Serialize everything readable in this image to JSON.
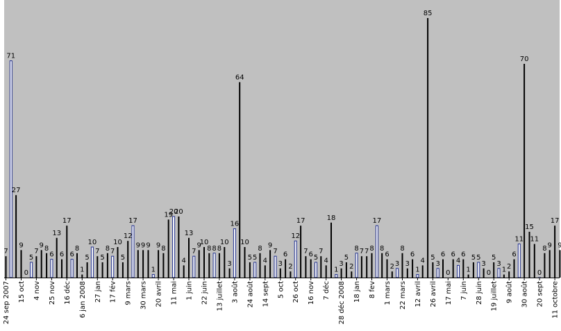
{
  "chart_data": {
    "type": "bar",
    "title": "",
    "xlabel": "",
    "ylabel": "",
    "ylim": [
      0,
      85
    ],
    "grid": false,
    "background": "#c0c0c0",
    "bar_color": "#000000",
    "highlight_color": "#1f2e8c",
    "values": [
      7,
      71,
      27,
      9,
      0,
      5,
      7,
      9,
      8,
      6,
      13,
      6,
      17,
      6,
      8,
      1,
      5,
      10,
      7,
      5,
      8,
      7,
      10,
      5,
      12,
      17,
      9,
      9,
      9,
      1,
      9,
      8,
      19,
      20,
      20,
      4,
      13,
      7,
      9,
      10,
      8,
      8,
      8,
      10,
      3,
      16,
      64,
      10,
      5,
      5,
      8,
      4,
      9,
      7,
      3,
      6,
      2,
      12,
      17,
      7,
      6,
      5,
      7,
      4,
      18,
      1,
      3,
      5,
      2,
      8,
      7,
      7,
      8,
      17,
      8,
      6,
      2,
      3,
      8,
      3,
      6,
      1,
      4,
      85,
      5,
      3,
      6,
      0,
      6,
      4,
      6,
      1,
      5,
      5,
      3,
      0,
      5,
      3,
      1,
      2,
      6,
      11,
      70,
      15,
      11,
      0,
      8,
      9,
      17,
      9
    ],
    "highlighted_indices": [
      1,
      5,
      9,
      13,
      17,
      21,
      25,
      29,
      33,
      37,
      41,
      45,
      49,
      53,
      57,
      61,
      65,
      69,
      73,
      77,
      81,
      85,
      89,
      93,
      97,
      101,
      105
    ],
    "tick_labels": [
      {
        "i": 0,
        "label": "24 sep 2007"
      },
      {
        "i": 3,
        "label": "15 oct"
      },
      {
        "i": 6,
        "label": "4 nov"
      },
      {
        "i": 9,
        "label": "25 nov"
      },
      {
        "i": 12,
        "label": "16 déc"
      },
      {
        "i": 15,
        "label": "6 jan 2008"
      },
      {
        "i": 18,
        "label": "27 jan"
      },
      {
        "i": 21,
        "label": "17 fév"
      },
      {
        "i": 24,
        "label": "9 mars"
      },
      {
        "i": 27,
        "label": "30 mars"
      },
      {
        "i": 30,
        "label": "20 avril"
      },
      {
        "i": 33,
        "label": "11 mai"
      },
      {
        "i": 36,
        "label": "1 juin"
      },
      {
        "i": 39,
        "label": "22 juin"
      },
      {
        "i": 42,
        "label": "13 juillet"
      },
      {
        "i": 45,
        "label": "3 août"
      },
      {
        "i": 48,
        "label": "24 août"
      },
      {
        "i": 51,
        "label": "14 sept"
      },
      {
        "i": 54,
        "label": "5 oct"
      },
      {
        "i": 57,
        "label": "26 oct"
      },
      {
        "i": 60,
        "label": "16 nov"
      },
      {
        "i": 63,
        "label": "7 déc"
      },
      {
        "i": 66,
        "label": "28 déc 2008"
      },
      {
        "i": 69,
        "label": "18 jan"
      },
      {
        "i": 72,
        "label": "8 fev"
      },
      {
        "i": 75,
        "label": "1 mars"
      },
      {
        "i": 78,
        "label": "22 mars"
      },
      {
        "i": 81,
        "label": "12 avril"
      },
      {
        "i": 84,
        "label": "26 avril"
      },
      {
        "i": 87,
        "label": "17 mai"
      },
      {
        "i": 90,
        "label": "7 juin"
      },
      {
        "i": 93,
        "label": "28 juin"
      },
      {
        "i": 96,
        "label": "19 juillet"
      },
      {
        "i": 99,
        "label": "9 août"
      },
      {
        "i": 102,
        "label": "30 août"
      },
      {
        "i": 105,
        "label": "20 sept"
      },
      {
        "i": 108,
        "label": "11 octobre"
      }
    ]
  }
}
